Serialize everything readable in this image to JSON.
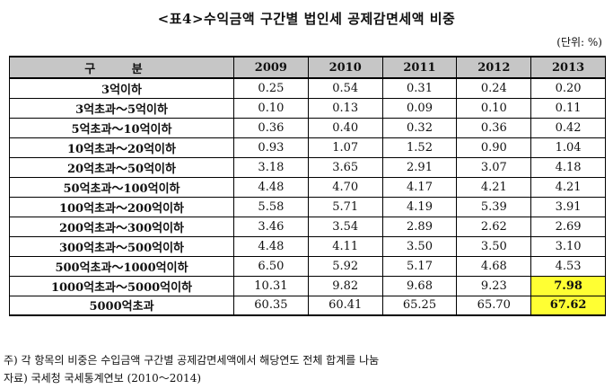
{
  "title": "<표4>수익금액 구간별 법인세 공제감면세액 비중",
  "unit": "(단위: %)",
  "table": {
    "header": {
      "category": "구 분",
      "years": [
        "2009",
        "2010",
        "2011",
        "2012",
        "2013"
      ]
    },
    "rows": [
      {
        "label": "3억이하",
        "values": [
          "0.25",
          "0.54",
          "0.31",
          "0.24",
          "0.20"
        ],
        "highlight": [
          false,
          false,
          false,
          false,
          false
        ]
      },
      {
        "label": "3억초과～5억이하",
        "values": [
          "0.10",
          "0.13",
          "0.09",
          "0.10",
          "0.11"
        ],
        "highlight": [
          false,
          false,
          false,
          false,
          false
        ]
      },
      {
        "label": "5억초과～10억이하",
        "values": [
          "0.36",
          "0.40",
          "0.32",
          "0.36",
          "0.42"
        ],
        "highlight": [
          false,
          false,
          false,
          false,
          false
        ]
      },
      {
        "label": "10억초과～20억이하",
        "values": [
          "0.93",
          "1.07",
          "1.52",
          "0.90",
          "1.04"
        ],
        "highlight": [
          false,
          false,
          false,
          false,
          false
        ]
      },
      {
        "label": "20억초과～50억이하",
        "values": [
          "3.18",
          "3.65",
          "2.91",
          "3.07",
          "4.18"
        ],
        "highlight": [
          false,
          false,
          false,
          false,
          false
        ]
      },
      {
        "label": "50억초과～100억이하",
        "values": [
          "4.48",
          "4.70",
          "4.17",
          "4.21",
          "4.21"
        ],
        "highlight": [
          false,
          false,
          false,
          false,
          false
        ]
      },
      {
        "label": "100억초과～200억이하",
        "values": [
          "5.58",
          "5.71",
          "4.19",
          "5.39",
          "3.91"
        ],
        "highlight": [
          false,
          false,
          false,
          false,
          false
        ]
      },
      {
        "label": "200억초과～300억이하",
        "values": [
          "3.46",
          "3.54",
          "2.89",
          "2.62",
          "2.69"
        ],
        "highlight": [
          false,
          false,
          false,
          false,
          false
        ]
      },
      {
        "label": "300억초과～500억이하",
        "values": [
          "4.48",
          "4.11",
          "3.50",
          "3.50",
          "3.10"
        ],
        "highlight": [
          false,
          false,
          false,
          false,
          false
        ]
      },
      {
        "label": "500억초과～1000억이하",
        "values": [
          "6.50",
          "5.92",
          "5.17",
          "4.68",
          "4.53"
        ],
        "highlight": [
          false,
          false,
          false,
          false,
          false
        ]
      },
      {
        "label": "1000억초과～5000억이하",
        "values": [
          "10.31",
          "9.82",
          "9.68",
          "9.23",
          "7.98"
        ],
        "highlight": [
          false,
          false,
          false,
          false,
          true
        ]
      },
      {
        "label": "5000억초과",
        "values": [
          "60.35",
          "60.41",
          "65.25",
          "65.70",
          "67.62"
        ],
        "highlight": [
          false,
          false,
          false,
          false,
          true
        ]
      }
    ]
  },
  "notes": [
    "주) 각 항목의 비중은 수입금액 구간별 공제감면세액에서 해당연도 전체 합계를 나눔",
    "자료) 국세청 국세통계연보 (2010～2014)"
  ],
  "colors": {
    "header_bg": "#c6c6c6",
    "highlight_bg": "#ffff33"
  }
}
